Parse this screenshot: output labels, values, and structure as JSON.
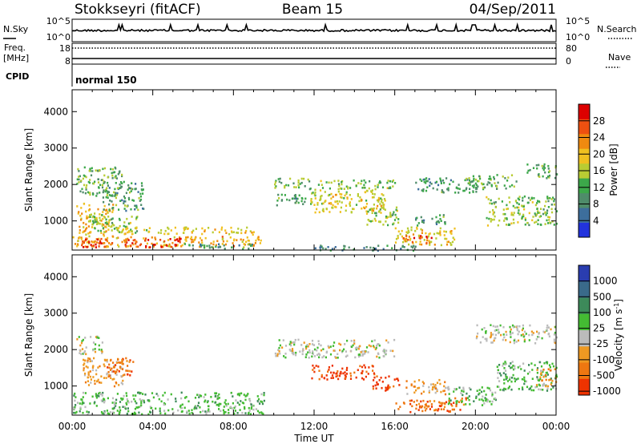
{
  "header": {
    "station": "Stokkseyri (fitACF)",
    "beam": "Beam 15",
    "date": "04/Sep/2011"
  },
  "noise_panel": {
    "left_label": "N.Sky",
    "right_label": "N.Search",
    "left_ticks": [
      "10^5",
      "10^0"
    ],
    "right_ticks": [
      "10^5",
      "10^0"
    ]
  },
  "freq_panel": {
    "left_label": "Freq.",
    "left_unit": "[MHz]",
    "left_ticks": [
      "18",
      "8"
    ],
    "right_label": "Nave",
    "right_ticks": [
      "80",
      "0"
    ]
  },
  "cpid": {
    "label": "CPID",
    "value": "normal 150"
  },
  "colors": {
    "power_scale": [
      "#2233dd",
      "#3d6e9c",
      "#4f8c6a",
      "#3ca84a",
      "#b9cc33",
      "#f0c020",
      "#f08a10",
      "#ee5010",
      "#dd0000"
    ],
    "velocity_scale": [
      "#2a3db0",
      "#3a6a8a",
      "#3d8a5a",
      "#44bb33",
      "#bbbbbb",
      "#ee9922",
      "#ee7711",
      "#ee3300"
    ]
  },
  "chart_data": [
    {
      "type": "heatmap",
      "name": "power",
      "xlabel": "",
      "ylabel": "Slant Range [km]",
      "y_ticks": [
        "1000",
        "2000",
        "3000",
        "4000"
      ],
      "ylim": [
        200,
        4600
      ],
      "xlim_hours": [
        0,
        24
      ],
      "colorbar": {
        "label": "Power [dB]",
        "ticks": [
          "4",
          "8",
          "12",
          "16",
          "20",
          "24",
          "28"
        ],
        "range": [
          0,
          32
        ]
      },
      "blobs": [
        {
          "t0": 0.0,
          "t1": 9.5,
          "r0": 300,
          "r1": 600,
          "v": 22
        },
        {
          "t0": 0.4,
          "t1": 5.5,
          "r0": 300,
          "r1": 550,
          "v": 29
        },
        {
          "t0": 0.2,
          "t1": 2.0,
          "r0": 600,
          "r1": 1500,
          "v": 20
        },
        {
          "t0": 0.2,
          "t1": 2.5,
          "r0": 1700,
          "r1": 2500,
          "v": 12
        },
        {
          "t0": 0.8,
          "t1": 3.2,
          "r0": 700,
          "r1": 1200,
          "v": 14
        },
        {
          "t0": 1.5,
          "t1": 3.5,
          "r0": 1300,
          "r1": 2100,
          "v": 10
        },
        {
          "t0": 2.0,
          "t1": 9.0,
          "r0": 650,
          "r1": 850,
          "v": 18
        },
        {
          "t0": 5.5,
          "t1": 9.0,
          "r0": 250,
          "r1": 400,
          "v": 8
        },
        {
          "t0": 10.0,
          "t1": 11.8,
          "r0": 1900,
          "r1": 2200,
          "v": 12
        },
        {
          "t0": 10.0,
          "t1": 11.8,
          "r0": 1450,
          "r1": 1750,
          "v": 10
        },
        {
          "t0": 11.8,
          "t1": 15.5,
          "r0": 1250,
          "r1": 1900,
          "v": 18
        },
        {
          "t0": 12.0,
          "t1": 16.0,
          "r0": 1900,
          "r1": 2150,
          "v": 14
        },
        {
          "t0": 12.0,
          "t1": 17.0,
          "r0": 200,
          "r1": 350,
          "v": 8
        },
        {
          "t0": 14.5,
          "t1": 16.2,
          "r0": 900,
          "r1": 1400,
          "v": 14
        },
        {
          "t0": 16.0,
          "t1": 19.0,
          "r0": 350,
          "r1": 850,
          "v": 20
        },
        {
          "t0": 16.3,
          "t1": 17.8,
          "r0": 420,
          "r1": 620,
          "v": 29
        },
        {
          "t0": 17.0,
          "t1": 18.5,
          "r0": 900,
          "r1": 1200,
          "v": 10
        },
        {
          "t0": 17.0,
          "t1": 20.0,
          "r0": 1800,
          "r1": 2200,
          "v": 10
        },
        {
          "t0": 19.5,
          "t1": 22.0,
          "r0": 1900,
          "r1": 2300,
          "v": 12
        },
        {
          "t0": 20.5,
          "t1": 24.0,
          "r0": 900,
          "r1": 1700,
          "v": 14
        },
        {
          "t0": 22.5,
          "t1": 24.0,
          "r0": 2200,
          "r1": 2600,
          "v": 12
        }
      ]
    },
    {
      "type": "heatmap",
      "name": "velocity",
      "xlabel": "Time UT",
      "ylabel": "Slant Range [km]",
      "y_ticks": [
        "1000",
        "2000",
        "3000",
        "4000"
      ],
      "x_ticks": [
        "00:00",
        "04:00",
        "08:00",
        "12:00",
        "16:00",
        "20:00",
        "00:00"
      ],
      "ylim": [
        200,
        4600
      ],
      "xlim_hours": [
        0,
        24
      ],
      "colorbar": {
        "label": "Velocity [m s^-1]",
        "ticks": [
          "1000",
          "500",
          "100",
          "25",
          "-25",
          "-100",
          "-500",
          "-1000"
        ]
      },
      "blobs": [
        {
          "t0": 0.0,
          "t1": 9.5,
          "r0": 250,
          "r1": 850,
          "v": 3
        },
        {
          "t0": 0.2,
          "t1": 1.5,
          "r0": 1900,
          "r1": 2400,
          "v": 4
        },
        {
          "t0": 0.5,
          "t1": 2.5,
          "r0": 1000,
          "r1": 1800,
          "v": 5
        },
        {
          "t0": 1.5,
          "t1": 3.0,
          "r0": 1300,
          "r1": 1800,
          "v": 6
        },
        {
          "t0": 10.0,
          "t1": 16.0,
          "r0": 1800,
          "r1": 2300,
          "v": 4
        },
        {
          "t0": 11.8,
          "t1": 15.0,
          "r0": 1200,
          "r1": 1600,
          "v": 7
        },
        {
          "t0": 14.8,
          "t1": 16.2,
          "r0": 900,
          "r1": 1300,
          "v": 7
        },
        {
          "t0": 16.0,
          "t1": 19.5,
          "r0": 300,
          "r1": 700,
          "v": 6
        },
        {
          "t0": 16.5,
          "t1": 18.5,
          "r0": 800,
          "r1": 1200,
          "v": 5
        },
        {
          "t0": 18.5,
          "t1": 21.0,
          "r0": 500,
          "r1": 1000,
          "v": 3
        },
        {
          "t0": 20.0,
          "t1": 24.0,
          "r0": 2200,
          "r1": 2700,
          "v": 4
        },
        {
          "t0": 21.0,
          "t1": 24.0,
          "r0": 900,
          "r1": 1700,
          "v": 3
        },
        {
          "t0": 23.0,
          "t1": 24.0,
          "r0": 1000,
          "r1": 1500,
          "v": 5
        }
      ]
    }
  ]
}
